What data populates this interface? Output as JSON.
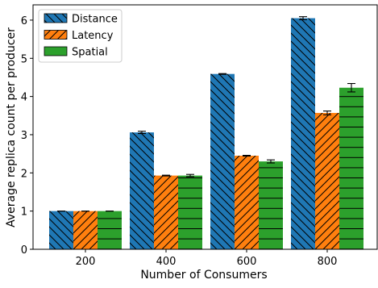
{
  "chart_data": {
    "type": "bar",
    "title": "",
    "xlabel": "Number of Consumers",
    "ylabel": "Average replica count per producer",
    "categories": [
      "200",
      "400",
      "600",
      "800"
    ],
    "ylim": [
      0,
      6.4
    ],
    "yticks": [
      0,
      1,
      2,
      3,
      4,
      5,
      6
    ],
    "grid": false,
    "legend_position": "top-left",
    "error_bars": true,
    "series": [
      {
        "name": "Distance",
        "color": "#1f77b4",
        "hatch": "backslash",
        "values": [
          1.0,
          3.06,
          4.59,
          6.05
        ],
        "errors": [
          0.0,
          0.03,
          0.01,
          0.04
        ]
      },
      {
        "name": "Latency",
        "color": "#ff7f0e",
        "hatch": "slash",
        "values": [
          1.0,
          1.93,
          2.45,
          3.57
        ],
        "errors": [
          0.0,
          0.01,
          0.01,
          0.05
        ]
      },
      {
        "name": "Spatial",
        "color": "#2ca02c",
        "hatch": "horizontal",
        "values": [
          1.0,
          1.93,
          2.3,
          4.23
        ],
        "errors": [
          0.0,
          0.03,
          0.04,
          0.11
        ]
      }
    ]
  }
}
